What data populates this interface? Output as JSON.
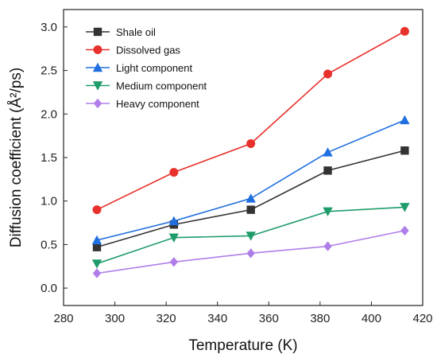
{
  "chart_data": {
    "type": "line",
    "xlabel": "Temperature (K)",
    "ylabel": "Diffusion coefficient (Å²/ps)",
    "xlim": [
      280,
      420
    ],
    "ylim": [
      -0.2,
      3.2
    ],
    "xticks": [
      280,
      300,
      320,
      340,
      360,
      380,
      400,
      420
    ],
    "yticks": [
      0.0,
      0.5,
      1.0,
      1.5,
      2.0,
      2.5,
      3.0
    ],
    "legend_position": "top-left",
    "x": [
      293,
      323,
      353,
      383,
      413
    ],
    "series": [
      {
        "name": "Shale oil",
        "color": "#333333",
        "marker": "square",
        "values": [
          0.47,
          0.73,
          0.9,
          1.35,
          1.58
        ]
      },
      {
        "name": "Dissolved gas",
        "color": "#e8312c",
        "marker": "circle",
        "values": [
          0.9,
          1.33,
          1.66,
          2.46,
          2.95
        ]
      },
      {
        "name": "Light component",
        "color": "#1f6fe0",
        "marker": "triangle-up",
        "values": [
          0.55,
          0.77,
          1.03,
          1.56,
          1.93
        ]
      },
      {
        "name": "Medium component",
        "color": "#1f9c6a",
        "marker": "triangle-down",
        "values": [
          0.28,
          0.58,
          0.6,
          0.88,
          0.93
        ]
      },
      {
        "name": "Heavy component",
        "color": "#b07ee8",
        "marker": "diamond",
        "values": [
          0.17,
          0.3,
          0.4,
          0.48,
          0.66
        ]
      }
    ]
  }
}
